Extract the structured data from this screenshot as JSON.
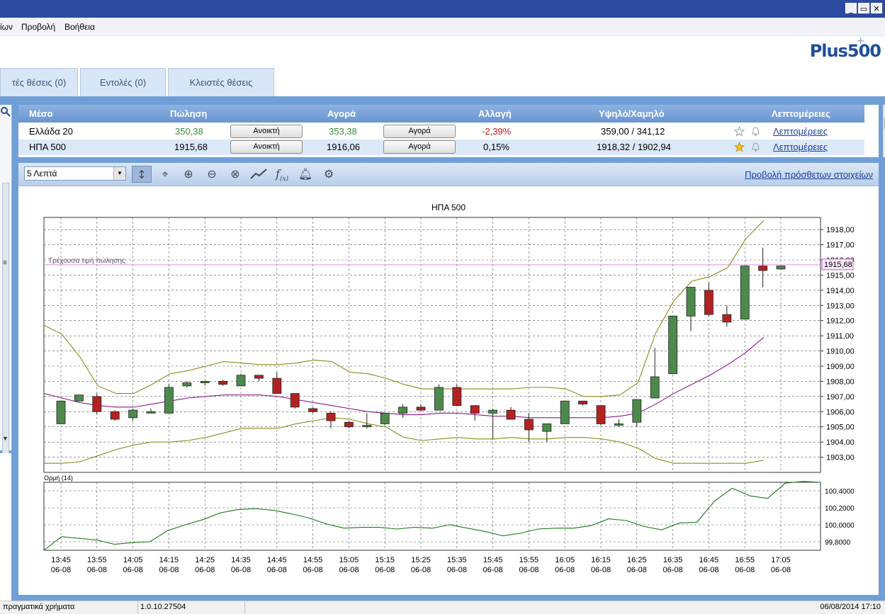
{
  "window": {
    "controls": [
      "_",
      "▭",
      "✕"
    ]
  },
  "menu": {
    "items": [
      "ίων",
      "Προβολή",
      "Βοήθεια"
    ]
  },
  "logo": {
    "text": "Plus500",
    "plus": "+"
  },
  "tabs": [
    "τές θέσεις (0)",
    "Εντολές (0)",
    "Κλειστές θέσεις"
  ],
  "table": {
    "headers": [
      "Μέσο",
      "Πώληση",
      "Αγορά",
      "Αλλαγή",
      "Υψηλό/Χαμηλό",
      "Λεπτομέρειες"
    ],
    "rows": [
      {
        "instrument": "Ελλάδα 20",
        "sell": "350,38",
        "sell_btn": "Ανοικτή",
        "buy": "353,38",
        "buy_btn": "Αγορά",
        "change": "-2,39%",
        "highlow": "359,00 / 341,12",
        "details": "Λεπτομέρειες"
      },
      {
        "instrument": "ΗΠΑ 500",
        "sell": "1915,68",
        "sell_btn": "Ανοικτή",
        "buy": "1916,06",
        "buy_btn": "Αγορά",
        "change": "0,15%",
        "highlow": "1918,32 / 1902,94",
        "details": "Λεπτομέρειες"
      }
    ]
  },
  "toolbar": {
    "timeframe": "5 Λεπτά",
    "more_link": "Προβολή πρόσθετων στοιχείων"
  },
  "colors": {
    "up": "#4c8a4c",
    "down": "#b32222",
    "sell_green": "#3c8c3c",
    "change_red": "#c0201d",
    "bands": "#8b8b1a",
    "ma": "#8b1a8b",
    "momentum": "#1a7a1a"
  },
  "chart_data": [
    {
      "type": "candlestick",
      "title": "ΗΠΑ 500",
      "current_label": "Τρέχουσα τιμή πώλησης",
      "current_value": "1915,68",
      "current": 1915.68,
      "ylim": [
        1902.0,
        1918.8
      ],
      "yticks": [
        1903,
        1904,
        1905,
        1906,
        1907,
        1908,
        1909,
        1910,
        1911,
        1912,
        1913,
        1914,
        1915,
        1916,
        1917,
        1918
      ],
      "ytick_labels": [
        "1903,00",
        "1904,00",
        "1905,00",
        "1906,00",
        "1907,00",
        "1908,00",
        "1909,00",
        "1910,00",
        "1911,00",
        "1912,00",
        "1913,00",
        "1914,00",
        "1915,00",
        "1916,00",
        "1917,00",
        "1918,00"
      ],
      "xtick_labels": [
        "13:45",
        "13:55",
        "14:05",
        "14:15",
        "14:25",
        "14:35",
        "14:45",
        "14:55",
        "15:05",
        "15:15",
        "15:25",
        "15:35",
        "15:45",
        "15:55",
        "16:05",
        "16:15",
        "16:25",
        "16:35",
        "16:45",
        "16:55",
        "17:05"
      ],
      "xtick_date": "06-08",
      "candles": [
        {
          "o": 1905.2,
          "h": 1906.7,
          "l": 1905.2,
          "c": 1906.7
        },
        {
          "o": 1906.7,
          "h": 1907.1,
          "l": 1906.7,
          "c": 1907.1
        },
        {
          "o": 1907.0,
          "h": 1907.2,
          "l": 1905.8,
          "c": 1906.0
        },
        {
          "o": 1906.0,
          "h": 1906.1,
          "l": 1905.4,
          "c": 1905.5
        },
        {
          "o": 1905.6,
          "h": 1906.2,
          "l": 1905.4,
          "c": 1906.1
        },
        {
          "o": 1906.0,
          "h": 1906.2,
          "l": 1905.9,
          "c": 1906.0
        },
        {
          "o": 1905.9,
          "h": 1907.8,
          "l": 1905.9,
          "c": 1907.6
        },
        {
          "o": 1907.7,
          "h": 1908.0,
          "l": 1907.6,
          "c": 1907.9
        },
        {
          "o": 1907.9,
          "h": 1908.0,
          "l": 1907.7,
          "c": 1908.0
        },
        {
          "o": 1908.0,
          "h": 1908.1,
          "l": 1907.7,
          "c": 1907.8
        },
        {
          "o": 1907.7,
          "h": 1908.5,
          "l": 1907.7,
          "c": 1908.4
        },
        {
          "o": 1908.4,
          "h": 1908.4,
          "l": 1908.0,
          "c": 1908.2
        },
        {
          "o": 1908.2,
          "h": 1908.6,
          "l": 1907.2,
          "c": 1907.2
        },
        {
          "o": 1907.2,
          "h": 1907.2,
          "l": 1906.2,
          "c": 1906.3
        },
        {
          "o": 1906.2,
          "h": 1906.3,
          "l": 1905.9,
          "c": 1906.0
        },
        {
          "o": 1905.9,
          "h": 1906.0,
          "l": 1904.9,
          "c": 1905.4
        },
        {
          "o": 1905.3,
          "h": 1905.4,
          "l": 1904.9,
          "c": 1905.0
        },
        {
          "o": 1905.0,
          "h": 1905.9,
          "l": 1904.9,
          "c": 1905.1
        },
        {
          "o": 1905.2,
          "h": 1905.9,
          "l": 1905.1,
          "c": 1905.9
        },
        {
          "o": 1905.9,
          "h": 1906.5,
          "l": 1905.6,
          "c": 1906.3
        },
        {
          "o": 1906.3,
          "h": 1906.5,
          "l": 1906.0,
          "c": 1906.1
        },
        {
          "o": 1906.1,
          "h": 1907.8,
          "l": 1906.1,
          "c": 1907.6
        },
        {
          "o": 1907.6,
          "h": 1907.8,
          "l": 1906.4,
          "c": 1906.4
        },
        {
          "o": 1906.4,
          "h": 1906.4,
          "l": 1905.4,
          "c": 1905.9
        },
        {
          "o": 1905.9,
          "h": 1906.2,
          "l": 1904.2,
          "c": 1906.1
        },
        {
          "o": 1906.1,
          "h": 1906.3,
          "l": 1905.6,
          "c": 1905.5
        },
        {
          "o": 1905.5,
          "h": 1905.9,
          "l": 1904.0,
          "c": 1904.8
        },
        {
          "o": 1904.7,
          "h": 1905.2,
          "l": 1904.0,
          "c": 1905.2
        },
        {
          "o": 1905.2,
          "h": 1906.7,
          "l": 1905.2,
          "c": 1906.7
        },
        {
          "o": 1906.7,
          "h": 1906.7,
          "l": 1906.4,
          "c": 1906.5
        },
        {
          "o": 1906.4,
          "h": 1906.4,
          "l": 1905.1,
          "c": 1905.2
        },
        {
          "o": 1905.2,
          "h": 1905.5,
          "l": 1905.0,
          "c": 1905.2
        },
        {
          "o": 1905.3,
          "h": 1906.8,
          "l": 1905.0,
          "c": 1906.8
        },
        {
          "o": 1906.9,
          "h": 1910.2,
          "l": 1906.9,
          "c": 1908.3
        },
        {
          "o": 1908.5,
          "h": 1912.3,
          "l": 1908.5,
          "c": 1912.3
        },
        {
          "o": 1912.3,
          "h": 1914.2,
          "l": 1911.3,
          "c": 1914.2
        },
        {
          "o": 1914.0,
          "h": 1914.5,
          "l": 1912.3,
          "c": 1912.4
        },
        {
          "o": 1912.4,
          "h": 1913.0,
          "l": 1911.6,
          "c": 1911.9
        },
        {
          "o": 1912.1,
          "h": 1915.6,
          "l": 1912.1,
          "c": 1915.6
        },
        {
          "o": 1915.6,
          "h": 1916.8,
          "l": 1914.2,
          "c": 1915.3
        },
        {
          "o": 1915.4,
          "h": 1915.6,
          "l": 1915.4,
          "c": 1915.6
        }
      ],
      "upper_band": [
        1911.7,
        1911.1,
        1909.6,
        1907.7,
        1907.2,
        1907.2,
        1907.8,
        1908.5,
        1908.7,
        1909.0,
        1909.3,
        1909.2,
        1909.1,
        1909.1,
        1909.2,
        1909.4,
        1909.3,
        1908.6,
        1908.5,
        1908.2,
        1907.8,
        1907.5,
        1907.5,
        1907.5,
        1907.5,
        1907.5,
        1907.5,
        1907.6,
        1907.6,
        1907.5,
        1907.0,
        1907.0,
        1907.1,
        1907.9,
        1911.2,
        1913.3,
        1914.6,
        1914.9,
        1915.5,
        1917.4,
        1918.6
      ],
      "lower_band": [
        1902.6,
        1902.6,
        1902.7,
        1903.1,
        1903.5,
        1903.8,
        1904.0,
        1904.0,
        1904.1,
        1904.3,
        1904.6,
        1904.9,
        1904.9,
        1904.9,
        1905.2,
        1905.4,
        1905.6,
        1905.5,
        1905.2,
        1905.0,
        1904.3,
        1904.1,
        1904.2,
        1904.3,
        1904.2,
        1904.2,
        1904.3,
        1904.2,
        1904.2,
        1904.3,
        1904.3,
        1904.2,
        1904.0,
        1903.6,
        1902.9,
        1902.6,
        1902.6,
        1902.6,
        1902.6,
        1902.6,
        1902.8
      ],
      "moving_average": [
        1907.2,
        1906.9,
        1906.6,
        1906.4,
        1906.3,
        1906.3,
        1906.5,
        1906.7,
        1906.9,
        1907.0,
        1907.1,
        1907.1,
        1907.1,
        1907.0,
        1906.8,
        1906.6,
        1906.4,
        1906.2,
        1906.0,
        1905.9,
        1905.8,
        1905.8,
        1905.9,
        1905.9,
        1905.8,
        1905.7,
        1905.7,
        1905.6,
        1905.6,
        1905.6,
        1905.6,
        1905.6,
        1905.7,
        1905.9,
        1906.5,
        1907.2,
        1907.8,
        1908.4,
        1909.1,
        1909.9,
        1910.9
      ]
    },
    {
      "type": "line",
      "title": "Ορμή (14)",
      "ylim": [
        99.7,
        100.5
      ],
      "yticks": [
        99.8,
        100.0,
        100.2,
        100.4
      ],
      "ytick_labels": [
        "99,8000",
        "100,0000",
        "100,2000",
        "100,4000"
      ],
      "values": [
        99.7,
        99.86,
        99.84,
        99.82,
        99.77,
        99.79,
        99.8,
        99.93,
        100.0,
        100.06,
        100.14,
        100.18,
        100.19,
        100.17,
        100.13,
        100.08,
        100.01,
        99.96,
        99.97,
        99.97,
        99.95,
        99.97,
        99.96,
        100.0,
        99.96,
        99.92,
        99.87,
        99.9,
        99.95,
        99.96,
        99.96,
        99.99,
        100.07,
        100.05,
        99.98,
        99.94,
        100.02,
        100.03,
        100.28,
        100.43,
        100.34,
        100.31,
        100.49,
        100.51,
        100.5
      ]
    }
  ]
}
